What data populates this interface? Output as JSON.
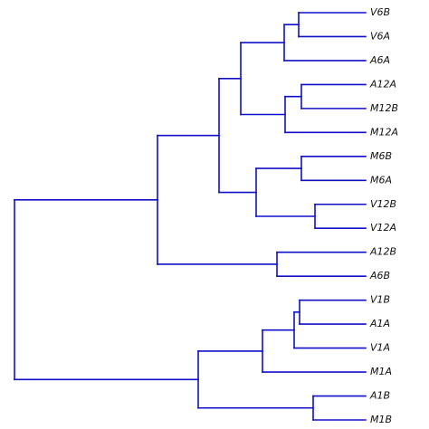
{
  "leaves": [
    "V6B",
    "V6A",
    "A6A",
    "A12A",
    "M12B",
    "M12A",
    "M6B",
    "M6A",
    "V12B",
    "V12A",
    "A12B",
    "A6B",
    "V1B",
    "A1A",
    "V1A",
    "M1A",
    "A1B",
    "M1B"
  ],
  "tree": [
    [
      [
        [
          [
            [
              [
                "V6B",
                "V6A"
              ],
              "A6A"
            ],
            [
              [
                "A12A",
                "M12B"
              ],
              "M12A"
            ]
          ],
          [
            [
              "M6B",
              "M6A"
            ],
            [
              "V12B",
              "V12A"
            ]
          ]
        ],
        [
          "A12B",
          "A6B"
        ]
      ]
    ],
    [
      [
        [
          [
            "V1B",
            "A1A"
          ],
          "V1A"
        ],
        "M1A"
      ],
      [
        "A1B",
        "M1B"
      ]
    ]
  ],
  "colors": {
    "branch": "#1010c8",
    "label": "#111111"
  }
}
